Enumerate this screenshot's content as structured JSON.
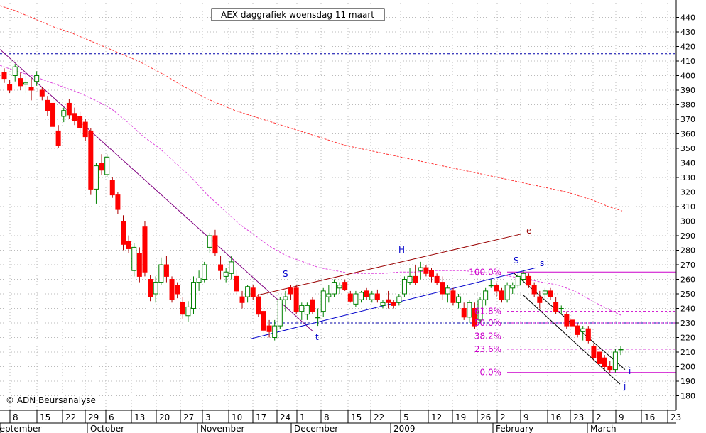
{
  "chart_data": {
    "type": "candlestick",
    "title": "AEX daggrafiek woensdag 11 maart",
    "credit": "© ADN Beursanalyse",
    "ylim": [
      170,
      450
    ],
    "yticks": [
      180,
      190,
      200,
      210,
      220,
      230,
      240,
      250,
      260,
      270,
      280,
      290,
      300,
      310,
      320,
      330,
      340,
      350,
      360,
      370,
      380,
      390,
      400,
      410,
      420,
      430,
      440
    ],
    "grid": true,
    "colors": {
      "up": "#ffffff",
      "down": "#ff0000",
      "up_outline": "#008000",
      "ma": "#ff3333",
      "ma2": "#dd44dd",
      "trend": "#800080",
      "channel": "#0000cc",
      "upper": "#990000",
      "fib": "#cc00cc"
    },
    "day_labels": [
      "8",
      "15",
      "22",
      "29",
      "6",
      "13",
      "20",
      "27",
      "3",
      "10",
      "17",
      "24",
      "1",
      "8",
      "15",
      "22",
      "5",
      "12",
      "19",
      "26",
      "2",
      "9",
      "16",
      "23",
      "2",
      "9",
      "16",
      "23"
    ],
    "month_labels": [
      "September",
      "October",
      "November",
      "December",
      "2009",
      "February",
      "March"
    ],
    "candles": [
      {
        "o": 402,
        "h": 405,
        "l": 395,
        "c": 398
      },
      {
        "o": 394,
        "h": 397,
        "l": 388,
        "c": 390
      },
      {
        "o": 400,
        "h": 408,
        "l": 396,
        "c": 406
      },
      {
        "o": 398,
        "h": 402,
        "l": 390,
        "c": 393
      },
      {
        "o": 394,
        "h": 400,
        "l": 388,
        "c": 395
      },
      {
        "o": 392,
        "h": 398,
        "l": 383,
        "c": 390
      },
      {
        "o": 396,
        "h": 403,
        "l": 393,
        "c": 400
      },
      {
        "o": 390,
        "h": 392,
        "l": 383,
        "c": 386
      },
      {
        "o": 383,
        "h": 386,
        "l": 372,
        "c": 376
      },
      {
        "o": 381,
        "h": 384,
        "l": 363,
        "c": 365
      },
      {
        "o": 362,
        "h": 366,
        "l": 350,
        "c": 352
      },
      {
        "o": 372,
        "h": 378,
        "l": 368,
        "c": 376
      },
      {
        "o": 381,
        "h": 384,
        "l": 370,
        "c": 373
      },
      {
        "o": 374,
        "h": 378,
        "l": 366,
        "c": 369
      },
      {
        "o": 372,
        "h": 375,
        "l": 360,
        "c": 364
      },
      {
        "o": 368,
        "h": 370,
        "l": 355,
        "c": 358
      },
      {
        "o": 362,
        "h": 364,
        "l": 318,
        "c": 322
      },
      {
        "o": 322,
        "h": 340,
        "l": 312,
        "c": 338
      },
      {
        "o": 340,
        "h": 346,
        "l": 332,
        "c": 335
      },
      {
        "o": 332,
        "h": 346,
        "l": 330,
        "c": 344
      },
      {
        "o": 328,
        "h": 330,
        "l": 316,
        "c": 318
      },
      {
        "o": 318,
        "h": 320,
        "l": 305,
        "c": 308
      },
      {
        "o": 300,
        "h": 304,
        "l": 280,
        "c": 284
      },
      {
        "o": 286,
        "h": 290,
        "l": 278,
        "c": 281
      },
      {
        "o": 266,
        "h": 285,
        "l": 262,
        "c": 282
      },
      {
        "o": 278,
        "h": 282,
        "l": 258,
        "c": 262
      },
      {
        "o": 296,
        "h": 300,
        "l": 262,
        "c": 265
      },
      {
        "o": 260,
        "h": 263,
        "l": 245,
        "c": 248
      },
      {
        "o": 250,
        "h": 262,
        "l": 244,
        "c": 258
      },
      {
        "o": 258,
        "h": 275,
        "l": 256,
        "c": 270
      },
      {
        "o": 270,
        "h": 276,
        "l": 258,
        "c": 262
      },
      {
        "o": 260,
        "h": 262,
        "l": 244,
        "c": 246
      },
      {
        "o": 256,
        "h": 258,
        "l": 247,
        "c": 250
      },
      {
        "o": 244,
        "h": 248,
        "l": 233,
        "c": 236
      },
      {
        "o": 235,
        "h": 245,
        "l": 231,
        "c": 241
      },
      {
        "o": 240,
        "h": 262,
        "l": 236,
        "c": 258
      },
      {
        "o": 258,
        "h": 266,
        "l": 252,
        "c": 261
      },
      {
        "o": 260,
        "h": 272,
        "l": 258,
        "c": 270
      },
      {
        "o": 282,
        "h": 292,
        "l": 278,
        "c": 290
      },
      {
        "o": 290,
        "h": 294,
        "l": 276,
        "c": 278
      },
      {
        "o": 270,
        "h": 276,
        "l": 260,
        "c": 266
      },
      {
        "o": 262,
        "h": 268,
        "l": 258,
        "c": 265
      },
      {
        "o": 264,
        "h": 276,
        "l": 260,
        "c": 272
      },
      {
        "o": 262,
        "h": 266,
        "l": 250,
        "c": 252
      },
      {
        "o": 248,
        "h": 252,
        "l": 240,
        "c": 244
      },
      {
        "o": 248,
        "h": 256,
        "l": 244,
        "c": 255
      },
      {
        "o": 254,
        "h": 256,
        "l": 246,
        "c": 248
      },
      {
        "o": 248,
        "h": 250,
        "l": 234,
        "c": 236
      },
      {
        "o": 238,
        "h": 242,
        "l": 222,
        "c": 225
      },
      {
        "o": 228,
        "h": 232,
        "l": 220,
        "c": 224
      },
      {
        "o": 220,
        "h": 232,
        "l": 218,
        "c": 228
      },
      {
        "o": 228,
        "h": 248,
        "l": 226,
        "c": 246
      },
      {
        "o": 246,
        "h": 252,
        "l": 238,
        "c": 248
      },
      {
        "o": 254,
        "h": 256,
        "l": 246,
        "c": 250
      },
      {
        "o": 254,
        "h": 256,
        "l": 236,
        "c": 238
      },
      {
        "o": 238,
        "h": 244,
        "l": 232,
        "c": 242
      },
      {
        "o": 236,
        "h": 244,
        "l": 232,
        "c": 242
      },
      {
        "o": 246,
        "h": 248,
        "l": 236,
        "c": 238
      },
      {
        "o": 234,
        "h": 240,
        "l": 228,
        "c": 234
      },
      {
        "o": 238,
        "h": 254,
        "l": 234,
        "c": 252
      },
      {
        "o": 248,
        "h": 256,
        "l": 244,
        "c": 250
      },
      {
        "o": 250,
        "h": 260,
        "l": 248,
        "c": 258
      },
      {
        "o": 254,
        "h": 258,
        "l": 250,
        "c": 256
      },
      {
        "o": 258,
        "h": 260,
        "l": 252,
        "c": 253
      },
      {
        "o": 250,
        "h": 252,
        "l": 244,
        "c": 245
      },
      {
        "o": 243,
        "h": 252,
        "l": 241,
        "c": 250
      },
      {
        "o": 246,
        "h": 252,
        "l": 244,
        "c": 251
      },
      {
        "o": 252,
        "h": 254,
        "l": 246,
        "c": 248
      },
      {
        "o": 246,
        "h": 252,
        "l": 244,
        "c": 250
      },
      {
        "o": 250,
        "h": 253,
        "l": 244,
        "c": 246
      },
      {
        "o": 242,
        "h": 246,
        "l": 240,
        "c": 244
      },
      {
        "o": 246,
        "h": 252,
        "l": 240,
        "c": 244
      },
      {
        "o": 244,
        "h": 246,
        "l": 240,
        "c": 242
      },
      {
        "o": 244,
        "h": 250,
        "l": 242,
        "c": 248
      },
      {
        "o": 250,
        "h": 262,
        "l": 248,
        "c": 260
      },
      {
        "o": 258,
        "h": 268,
        "l": 256,
        "c": 262
      },
      {
        "o": 262,
        "h": 270,
        "l": 256,
        "c": 258
      },
      {
        "o": 266,
        "h": 272,
        "l": 260,
        "c": 268
      },
      {
        "o": 268,
        "h": 270,
        "l": 262,
        "c": 264
      },
      {
        "o": 266,
        "h": 268,
        "l": 258,
        "c": 262
      },
      {
        "o": 262,
        "h": 264,
        "l": 256,
        "c": 258
      },
      {
        "o": 258,
        "h": 262,
        "l": 246,
        "c": 250
      },
      {
        "o": 250,
        "h": 256,
        "l": 244,
        "c": 254
      },
      {
        "o": 252,
        "h": 254,
        "l": 242,
        "c": 244
      },
      {
        "o": 244,
        "h": 250,
        "l": 240,
        "c": 248
      },
      {
        "o": 240,
        "h": 244,
        "l": 232,
        "c": 234
      },
      {
        "o": 234,
        "h": 246,
        "l": 230,
        "c": 244
      },
      {
        "o": 240,
        "h": 244,
        "l": 226,
        "c": 228
      },
      {
        "o": 232,
        "h": 248,
        "l": 230,
        "c": 246
      },
      {
        "o": 246,
        "h": 254,
        "l": 242,
        "c": 252
      },
      {
        "o": 256,
        "h": 260,
        "l": 254,
        "c": 256
      },
      {
        "o": 256,
        "h": 258,
        "l": 248,
        "c": 252
      },
      {
        "o": 252,
        "h": 254,
        "l": 244,
        "c": 246
      },
      {
        "o": 246,
        "h": 258,
        "l": 244,
        "c": 256
      },
      {
        "o": 254,
        "h": 258,
        "l": 250,
        "c": 256
      },
      {
        "o": 256,
        "h": 264,
        "l": 254,
        "c": 262
      },
      {
        "o": 260,
        "h": 266,
        "l": 258,
        "c": 264
      },
      {
        "o": 262,
        "h": 264,
        "l": 254,
        "c": 256
      },
      {
        "o": 256,
        "h": 258,
        "l": 248,
        "c": 250
      },
      {
        "o": 248,
        "h": 252,
        "l": 240,
        "c": 244
      },
      {
        "o": 250,
        "h": 254,
        "l": 246,
        "c": 252
      },
      {
        "o": 252,
        "h": 254,
        "l": 246,
        "c": 248
      },
      {
        "o": 244,
        "h": 248,
        "l": 236,
        "c": 238
      },
      {
        "o": 240,
        "h": 242,
        "l": 236,
        "c": 240
      },
      {
        "o": 236,
        "h": 238,
        "l": 226,
        "c": 228
      },
      {
        "o": 232,
        "h": 236,
        "l": 226,
        "c": 228
      },
      {
        "o": 228,
        "h": 230,
        "l": 220,
        "c": 222
      },
      {
        "o": 224,
        "h": 228,
        "l": 218,
        "c": 226
      },
      {
        "o": 226,
        "h": 228,
        "l": 216,
        "c": 218
      },
      {
        "o": 214,
        "h": 216,
        "l": 204,
        "c": 206
      },
      {
        "o": 210,
        "h": 212,
        "l": 200,
        "c": 202
      },
      {
        "o": 206,
        "h": 208,
        "l": 198,
        "c": 200
      },
      {
        "o": 200,
        "h": 204,
        "l": 196,
        "c": 198
      },
      {
        "o": 198,
        "h": 212,
        "l": 196,
        "c": 210
      },
      {
        "o": 212,
        "h": 214,
        "l": 208,
        "c": 212
      }
    ],
    "ma200": [
      448,
      445,
      441,
      437,
      433,
      430,
      426,
      422,
      418,
      414,
      410,
      405,
      400,
      394,
      389,
      384,
      380,
      376,
      373,
      370,
      367,
      364,
      361,
      358,
      355,
      352,
      350,
      348,
      346,
      344,
      342,
      340,
      338,
      336,
      334,
      332,
      330,
      328,
      326,
      324,
      322,
      320,
      317,
      314,
      310,
      307
    ],
    "ma50": [
      407,
      403,
      400,
      396,
      392,
      388,
      383,
      377,
      368,
      358,
      350,
      340,
      330,
      318,
      308,
      298,
      290,
      282,
      276,
      272,
      268,
      266,
      264,
      264,
      264,
      265,
      265,
      266,
      266,
      266,
      265,
      264,
      262,
      260,
      258,
      256,
      252,
      246,
      240,
      235
    ],
    "hlines": {
      "top": 415,
      "bottom": 219,
      "fib": [
        {
          "label": "100.0%",
          "value": 265
        },
        {
          "label": "61.8%",
          "value": 238
        },
        {
          "label": "50.0%",
          "value": 230
        },
        {
          "label": "38.2%",
          "value": 221
        },
        {
          "label": "23.6%",
          "value": 212
        },
        {
          "label": "0.0%",
          "value": 196
        }
      ]
    },
    "pattern_labels": [
      "S",
      "H",
      "S",
      "e",
      "s",
      "t",
      "i",
      "j"
    ]
  }
}
